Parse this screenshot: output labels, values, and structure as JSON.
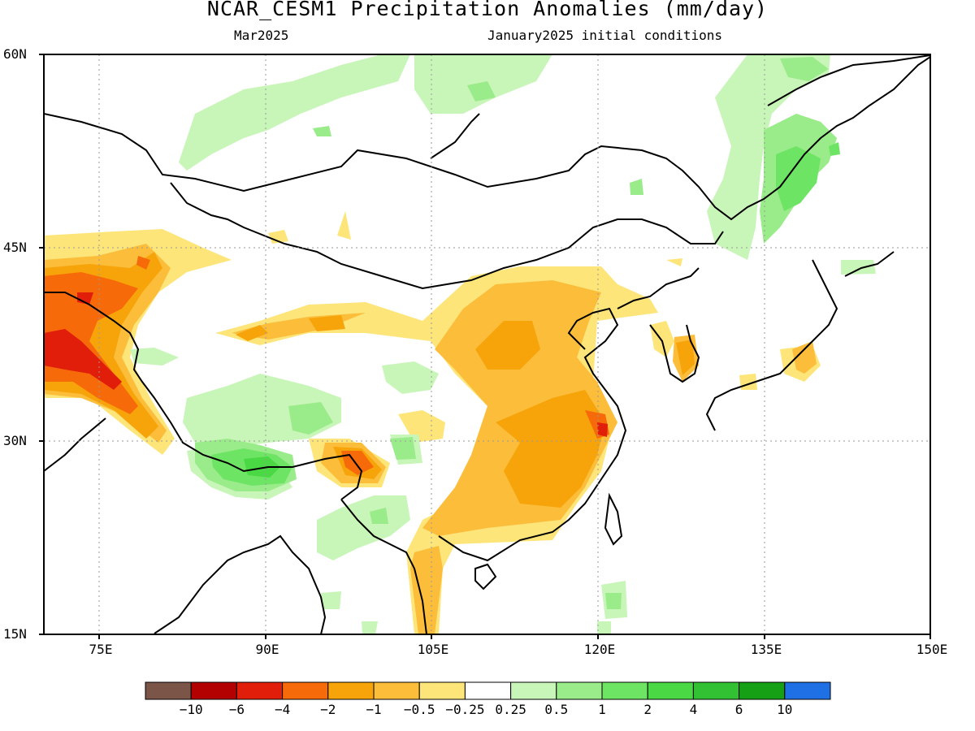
{
  "title": "NCAR_CESM1 Precipitation Anomalies (mm/day)",
  "subtitle_left": "Mar2025",
  "subtitle_right": "January2025 initial conditions",
  "lat_labels": [
    "60N",
    "45N",
    "30N",
    "15N"
  ],
  "lon_labels": [
    "75E",
    "90E",
    "105E",
    "120E",
    "135E",
    "150E"
  ],
  "extent": {
    "lon": [
      70,
      150
    ],
    "lat": [
      15,
      60
    ]
  },
  "colorbar": {
    "colors": [
      "#7b5548",
      "#b30000",
      "#e01e0a",
      "#f76a0a",
      "#f7a30a",
      "#fbbd3a",
      "#fde57a",
      "#ffffff",
      "#c8f5b8",
      "#9aeb8a",
      "#6ee465",
      "#4ad845",
      "#32c132",
      "#15a015",
      "#1f6fe5"
    ],
    "labels": [
      "−10",
      "−6",
      "−4",
      "−2",
      "−1",
      "−0.5",
      "−0.25",
      "0.25",
      "0.5",
      "1",
      "2",
      "4",
      "6",
      "10"
    ],
    "bounds": [
      -10,
      -6,
      -4,
      -2,
      -1,
      -0.5,
      -0.25,
      0.25,
      0.5,
      1,
      2,
      4,
      6,
      10
    ]
  }
}
